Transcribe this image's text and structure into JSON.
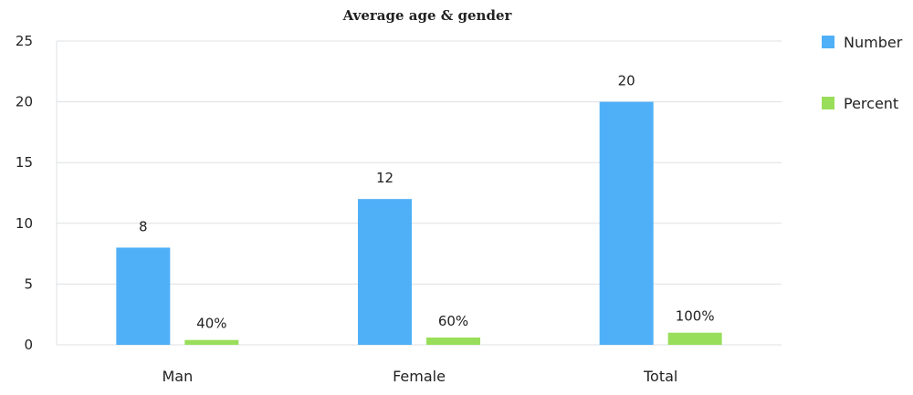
{
  "chart_data": {
    "type": "bar",
    "title": "Average age & gender",
    "xlabel": "",
    "ylabel": "",
    "categories": [
      "Man",
      "Female",
      "Total"
    ],
    "ylim": [
      0,
      25
    ],
    "yticks": [
      0,
      5,
      10,
      15,
      20,
      25
    ],
    "grid": true,
    "legend_position": "right",
    "series": [
      {
        "name": "Number",
        "color": "#4fb0f7",
        "values": [
          8,
          12,
          20
        ],
        "labels": [
          "8",
          "12",
          "20"
        ]
      },
      {
        "name": "Percent",
        "color": "#99de5a",
        "values": [
          0.4,
          0.6,
          1.0
        ],
        "labels": [
          "40%",
          "60%",
          "100%"
        ]
      }
    ]
  }
}
